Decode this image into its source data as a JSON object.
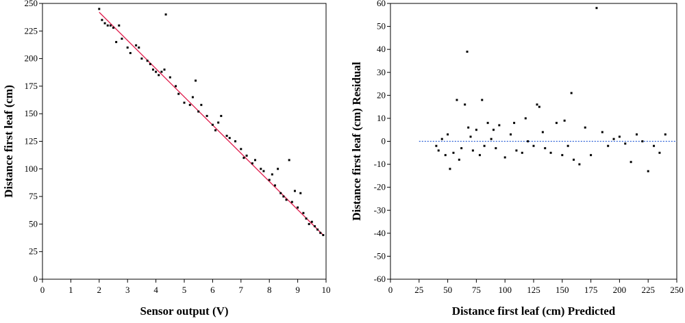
{
  "chart_data": [
    {
      "type": "scatter",
      "xlabel": "Sensor output (V)",
      "ylabel": "Distance first leaf (cm)",
      "color": "#000000",
      "xlim": [
        0,
        10
      ],
      "xticks": [
        0,
        1,
        2,
        3,
        4,
        5,
        6,
        7,
        8,
        9,
        10
      ],
      "ylim": [
        0,
        250
      ],
      "yticks": [
        0,
        25,
        50,
        75,
        100,
        125,
        150,
        175,
        200,
        225,
        250
      ],
      "x": [
        2.0,
        2.1,
        2.2,
        2.3,
        2.4,
        2.5,
        2.6,
        2.7,
        2.8,
        3.0,
        3.1,
        3.3,
        3.4,
        3.5,
        3.7,
        3.8,
        3.9,
        4.0,
        4.1,
        4.2,
        4.3,
        4.35,
        4.5,
        4.7,
        4.8,
        5.0,
        5.2,
        5.3,
        5.4,
        5.5,
        5.6,
        5.8,
        6.0,
        6.1,
        6.2,
        6.3,
        6.5,
        6.6,
        6.8,
        7.0,
        7.1,
        7.2,
        7.4,
        7.5,
        7.7,
        7.8,
        8.0,
        8.1,
        8.2,
        8.3,
        8.4,
        8.5,
        8.6,
        8.7,
        8.8,
        8.9,
        9.0,
        9.1,
        9.2,
        9.3,
        9.4,
        9.5,
        9.6,
        9.7,
        9.8,
        9.9
      ],
      "values": [
        245,
        235,
        232,
        230,
        230,
        228,
        215,
        230,
        218,
        210,
        205,
        212,
        210,
        200,
        198,
        195,
        190,
        188,
        185,
        188,
        190,
        240,
        183,
        175,
        168,
        160,
        158,
        165,
        180,
        152,
        158,
        148,
        140,
        135,
        142,
        148,
        130,
        128,
        125,
        118,
        110,
        112,
        105,
        108,
        100,
        98,
        90,
        95,
        85,
        100,
        78,
        75,
        72,
        108,
        70,
        80,
        65,
        78,
        60,
        55,
        50,
        52,
        48,
        45,
        42,
        40
      ],
      "fit": {
        "x": [
          2.0,
          9.9
        ],
        "y": [
          242,
          40
        ],
        "color": "#e0194a"
      }
    },
    {
      "type": "scatter",
      "xlabel": "Distance first leaf (cm) Predicted",
      "ylabel": "Distance first leaf (cm) Residual",
      "color": "#000000",
      "xlim": [
        0,
        250
      ],
      "xticks": [
        0,
        25,
        50,
        75,
        100,
        125,
        150,
        175,
        200,
        225,
        250
      ],
      "ylim": [
        -60,
        60
      ],
      "yticks": [
        -60,
        -50,
        -40,
        -30,
        -20,
        -10,
        0,
        10,
        20,
        30,
        40,
        50,
        60
      ],
      "x": [
        40,
        42,
        45,
        48,
        50,
        52,
        55,
        58,
        60,
        62,
        65,
        67,
        68,
        70,
        72,
        75,
        78,
        80,
        82,
        85,
        88,
        90,
        92,
        95,
        100,
        105,
        108,
        110,
        115,
        118,
        120,
        125,
        128,
        130,
        133,
        135,
        140,
        145,
        150,
        152,
        155,
        158,
        160,
        165,
        170,
        175,
        180,
        185,
        190,
        195,
        200,
        205,
        210,
        215,
        220,
        225,
        230,
        235,
        240
      ],
      "values": [
        -2,
        -4,
        1,
        -6,
        3,
        -12,
        -5,
        18,
        -8,
        -3,
        16,
        39,
        6,
        2,
        -4,
        5,
        -6,
        18,
        -2,
        8,
        1,
        5,
        -3,
        7,
        -7,
        3,
        8,
        -4,
        -5,
        10,
        0,
        -2,
        16,
        15,
        4,
        -3,
        -5,
        8,
        -6,
        9,
        -2,
        21,
        -8,
        -10,
        6,
        -6,
        58,
        4,
        -2,
        1,
        2,
        -1,
        -9,
        3,
        0,
        -13,
        -2,
        -5,
        3
      ],
      "hline": {
        "y": 0,
        "xrange": [
          25,
          250
        ],
        "color": "#2a5fd6",
        "style": "dotted"
      }
    }
  ]
}
